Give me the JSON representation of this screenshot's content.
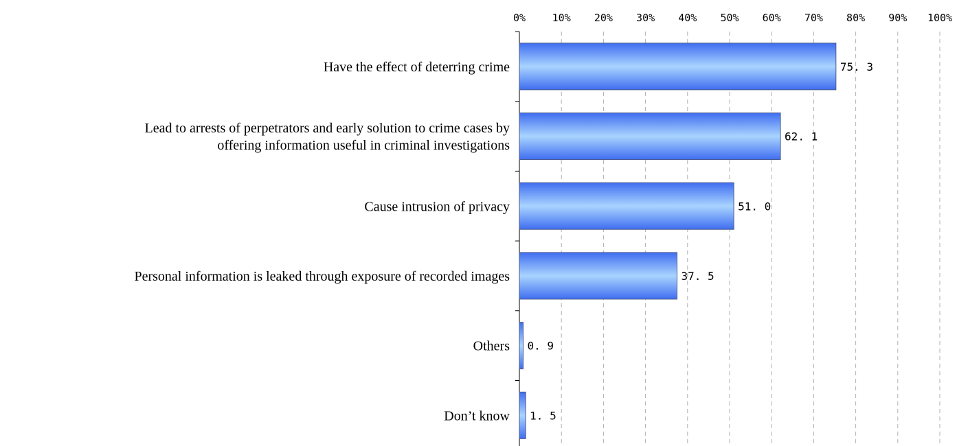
{
  "chart_data": {
    "type": "bar",
    "orientation": "horizontal",
    "title": "",
    "xlabel": "",
    "ylabel": "",
    "xlim": [
      0,
      100
    ],
    "tick_values": [
      0,
      10,
      20,
      30,
      40,
      50,
      60,
      70,
      80,
      90,
      100
    ],
    "tick_labels": [
      "0%",
      "10%",
      "20%",
      "30%",
      "40%",
      "50%",
      "60%",
      "70%",
      "80%",
      "90%",
      "100%"
    ],
    "axis_position": "top",
    "grid": "vertical dashed",
    "categories": [
      [
        "Have the effect of deterring crime"
      ],
      [
        "Lead to arrests of perpetrators and early solution to crime cases by",
        "offering information useful in criminal investigations"
      ],
      [
        "Cause intrusion of privacy"
      ],
      [
        "Personal information is leaked through exposure of recorded images"
      ],
      [
        "Others"
      ],
      [
        "Don’t know"
      ]
    ],
    "values": [
      75.3,
      62.1,
      51.0,
      37.5,
      0.9,
      1.5
    ],
    "value_labels": [
      "75. 3",
      "62. 1",
      "51. 0",
      "37. 5",
      "0. 9",
      "1. 5"
    ],
    "colors": {
      "bar_light": "#a9d4ff",
      "bar_dark": "#3f6df0",
      "bar_border": "#4a5a8a",
      "grid": "#b0b0b0",
      "axis": "#000000"
    }
  }
}
